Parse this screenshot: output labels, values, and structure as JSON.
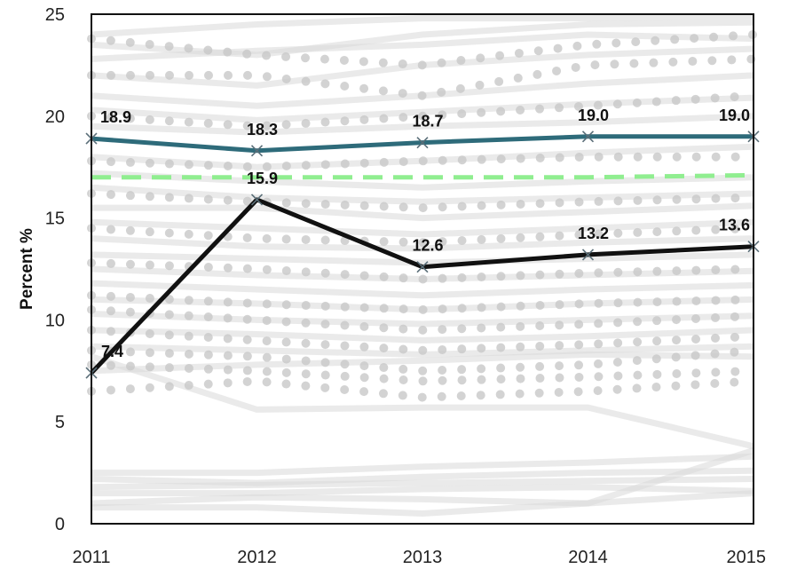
{
  "chart_data": {
    "type": "line",
    "title": "",
    "xlabel": "",
    "ylabel": "Percent %",
    "x": [
      "2011",
      "2012",
      "2013",
      "2014",
      "2015"
    ],
    "ylim": [
      0,
      25
    ],
    "yticks": [
      "0",
      "5",
      "10",
      "15",
      "20",
      "25"
    ],
    "series": [
      {
        "values": [
          18.9,
          18.3,
          18.7,
          19.0,
          19.0
        ],
        "labels": [
          "18.9",
          "18.3",
          "18.7",
          "19.0",
          "19.0"
        ],
        "color": "#2e6b7a",
        "style": "solid",
        "marker": "x"
      },
      {
        "values": [
          7.4,
          15.9,
          12.6,
          13.2,
          13.6
        ],
        "labels": [
          "7.4",
          "15.9",
          "12.6",
          "13.2",
          "13.6"
        ],
        "color": "#111111",
        "style": "solid",
        "marker": "x"
      },
      {
        "values": [
          17.0,
          17.0,
          17.0,
          17.0,
          17.1
        ],
        "color": "#90ee90",
        "style": "dashed"
      }
    ],
    "background_series": {
      "color": "#d9d9d9",
      "lines": [
        [
          24.0,
          24.5,
          24.8,
          24.8,
          24.9
        ],
        [
          23.5,
          23.0,
          24.0,
          24.5,
          24.6
        ],
        [
          22.8,
          23.2,
          23.5,
          24.0,
          23.8
        ],
        [
          22.0,
          21.5,
          22.5,
          23.0,
          23.3
        ],
        [
          21.0,
          20.5,
          21.0,
          21.6,
          22.0
        ],
        [
          20.3,
          19.8,
          20.2,
          20.6,
          20.9
        ],
        [
          19.5,
          19.2,
          19.5,
          19.7,
          20.0
        ],
        [
          18.0,
          17.5,
          17.8,
          18.2,
          18.5
        ],
        [
          17.2,
          16.8,
          16.5,
          16.8,
          17.0
        ],
        [
          16.5,
          16.0,
          15.8,
          16.0,
          16.2
        ],
        [
          15.5,
          15.5,
          15.0,
          15.3,
          15.6
        ],
        [
          14.8,
          14.5,
          14.2,
          14.5,
          14.8
        ],
        [
          14.0,
          13.6,
          13.5,
          13.8,
          14.0
        ],
        [
          13.2,
          13.0,
          12.8,
          13.0,
          13.2
        ],
        [
          12.5,
          12.2,
          12.0,
          12.2,
          12.4
        ],
        [
          11.8,
          11.5,
          11.2,
          11.5,
          11.7
        ],
        [
          11.0,
          10.8,
          10.5,
          10.8,
          11.0
        ],
        [
          10.3,
          10.0,
          9.8,
          10.0,
          10.2
        ],
        [
          9.5,
          9.3,
          9.0,
          9.2,
          9.5
        ],
        [
          8.7,
          8.5,
          8.3,
          8.5,
          8.7
        ],
        [
          8.2,
          5.6,
          5.7,
          5.7,
          3.8
        ],
        [
          7.5,
          7.8,
          8.0,
          8.3,
          8.2
        ],
        [
          2.5,
          2.5,
          2.8,
          3.0,
          3.3
        ],
        [
          2.2,
          2.0,
          2.3,
          2.5,
          2.6
        ],
        [
          1.8,
          1.9,
          2.0,
          2.1,
          2.2
        ],
        [
          1.5,
          1.5,
          1.7,
          1.8,
          1.6
        ],
        [
          1.0,
          1.3,
          1.2,
          1.0,
          3.6
        ],
        [
          0.8,
          0.8,
          0.5,
          1.0,
          1.5
        ]
      ],
      "dotted": [
        [
          23.8,
          23.0,
          22.5,
          23.5,
          24.0
        ],
        [
          22.0,
          22.0,
          21.0,
          22.5,
          22.8
        ],
        [
          20.0,
          19.5,
          20.0,
          20.5,
          21.0
        ],
        [
          17.8,
          17.5,
          17.8,
          18.0,
          18.0
        ],
        [
          16.2,
          15.8,
          15.5,
          15.8,
          16.0
        ],
        [
          14.5,
          14.0,
          13.8,
          14.2,
          14.5
        ],
        [
          12.8,
          12.5,
          12.0,
          12.3,
          12.5
        ],
        [
          11.2,
          10.8,
          10.5,
          10.8,
          11.0
        ],
        [
          10.5,
          10.0,
          9.5,
          9.8,
          10.2
        ],
        [
          9.5,
          9.0,
          8.5,
          8.8,
          9.2
        ],
        [
          8.5,
          8.2,
          7.5,
          7.8,
          8.5
        ],
        [
          7.8,
          7.5,
          7.0,
          7.2,
          7.5
        ],
        [
          6.5,
          7.0,
          6.2,
          6.5,
          7.0
        ]
      ]
    }
  }
}
